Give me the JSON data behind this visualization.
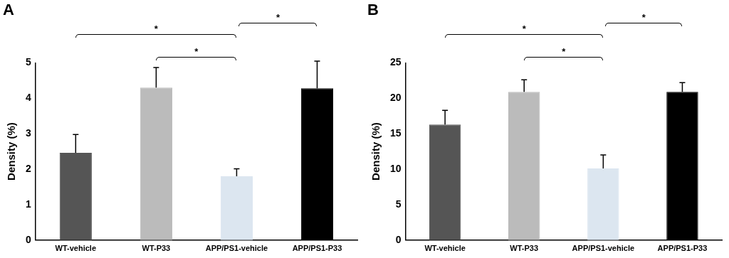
{
  "chart_data": [
    {
      "type": "bar",
      "title": "A",
      "ylabel": "Density (%)",
      "categories": [
        "WT-vehicle",
        "WT-P33",
        "APP/PS1-vehicle",
        "APP/PS1-P33"
      ],
      "values": [
        2.46,
        4.3,
        1.8,
        4.28
      ],
      "errors": [
        [
          2.46,
          2.98
        ],
        [
          4.3,
          4.87
        ],
        [
          1.8,
          2.01
        ],
        [
          4.28,
          5.05
        ]
      ],
      "colors": [
        "#555555",
        "#bbbbbb",
        "#dce6f0",
        "#000000"
      ],
      "ylim": [
        0,
        5
      ],
      "yticks": [
        0,
        1,
        2,
        3,
        4,
        5
      ],
      "grid": false,
      "legend": false,
      "annotations": [
        "*",
        "*",
        "*"
      ]
    },
    {
      "type": "bar",
      "title": "B",
      "ylabel": "Density (%)",
      "categories": [
        "WT-vehicle",
        "WT-P33",
        "APP/PS1-vehicle",
        "APP/PS1-P33"
      ],
      "values": [
        16.3,
        20.9,
        10.1,
        20.9
      ],
      "errors": [
        [
          16.3,
          18.3
        ],
        [
          20.9,
          22.6
        ],
        [
          10.1,
          12.0
        ],
        [
          20.9,
          22.2
        ]
      ],
      "colors": [
        "#555555",
        "#bbbbbb",
        "#dce6f0",
        "#000000"
      ],
      "ylim": [
        0,
        25
      ],
      "yticks": [
        0,
        5,
        10,
        15,
        20,
        25
      ],
      "grid": false,
      "legend": false,
      "annotations": [
        "*",
        "*",
        "*"
      ]
    }
  ]
}
